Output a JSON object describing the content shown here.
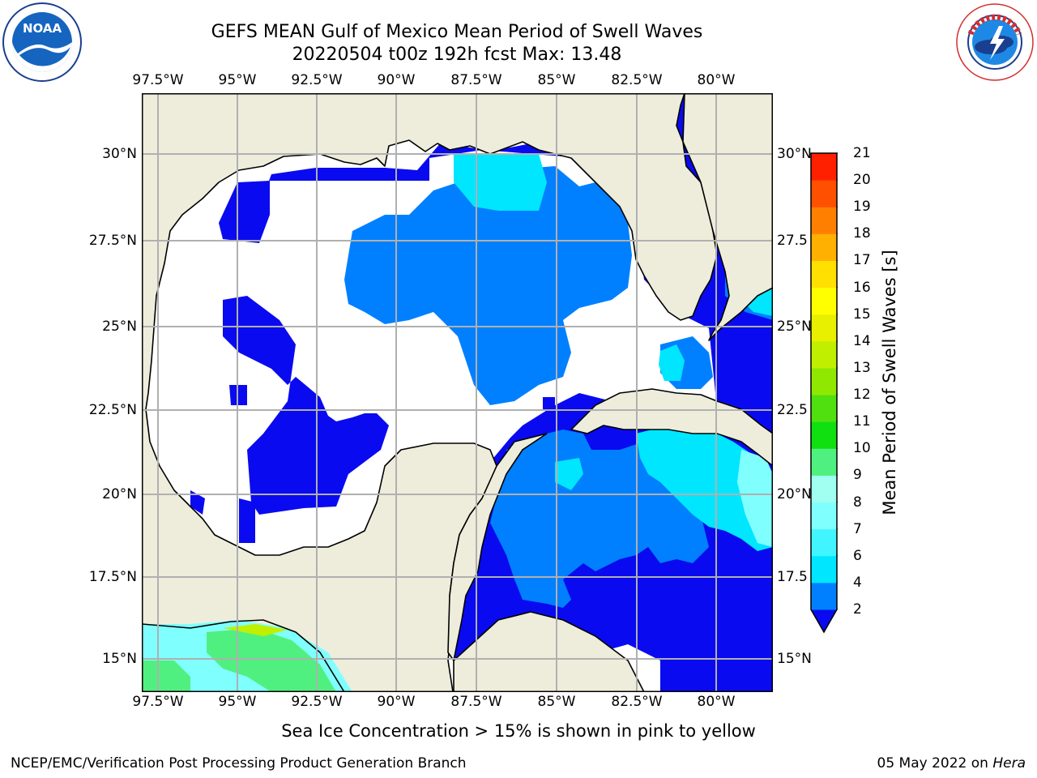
{
  "header": {
    "title_line1": "GEFS MEAN Gulf of Mexico Mean Period of Swell Waves",
    "title_line2": "20220504 t00z 192h fcst   Max: 13.48"
  },
  "logos": {
    "left": {
      "text": "NOAA",
      "ring_text": "NATIONAL OCEANIC AND ATMOSPHERIC ADMINISTRATION · U.S. DEPARTMENT OF COMMERCE"
    },
    "right": {
      "ring_text": "NATIONAL WEATHER SERVICE"
    }
  },
  "map": {
    "lon_ticks": [
      "97.5°W",
      "95°W",
      "92.5°W",
      "90°W",
      "87.5°W",
      "85°W",
      "82.5°W",
      "80°W"
    ],
    "lat_ticks_left": [
      "30°N",
      "27.5°N",
      "25°N",
      "22.5°N",
      "20°N",
      "17.5°N",
      "15°N"
    ],
    "lat_ticks_right": [
      "30°N",
      "27.5",
      "25°N",
      "22.5",
      "20°N",
      "17.5",
      "15°N"
    ],
    "colors": {
      "land": "#eeeddc",
      "no_data": "#ffffff",
      "grid": "#b0b0b0",
      "coast": "#000000"
    }
  },
  "colorbar": {
    "label": "Mean Period of Swell Waves [s]",
    "ticks": [
      "2",
      "4",
      "6",
      "7",
      "8",
      "9",
      "10",
      "11",
      "12",
      "13",
      "14",
      "15",
      "16",
      "17",
      "18",
      "19",
      "20",
      "21"
    ],
    "colors": [
      "#0a0af0",
      "#0080ff",
      "#00e6ff",
      "#40f5ff",
      "#80ffff",
      "#a0fff0",
      "#50f080",
      "#10e010",
      "#50e010",
      "#90e800",
      "#c0f000",
      "#e8f000",
      "#ffff00",
      "#ffe000",
      "#ffb000",
      "#ff8000",
      "#ff5000",
      "#ff2000",
      "#ff0000"
    ]
  },
  "footer": {
    "note": "Sea Ice Concentration > 15% is shown in pink to yellow",
    "left": "NCEP/EMC/Verification Post Processing Product Generation Branch",
    "right_date": "05 May 2022 on ",
    "right_host": "Hera"
  }
}
